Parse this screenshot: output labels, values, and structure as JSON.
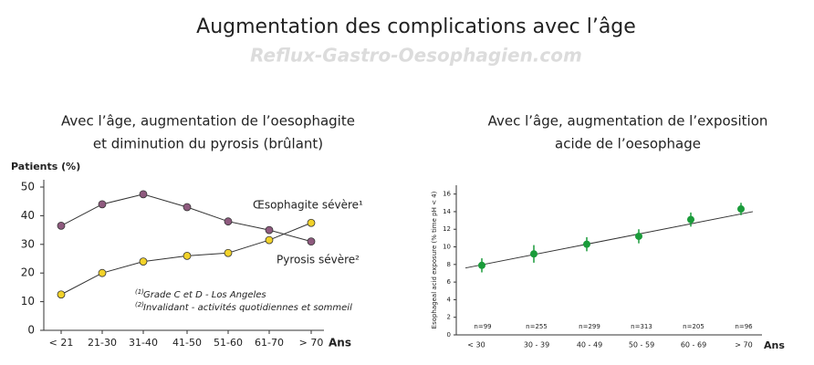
{
  "title": "Augmentation des complications avec l’âge",
  "watermark": "Reflux-Gastro-Oesophagien.com",
  "chart_data": [
    {
      "type": "line",
      "title": [
        "Avec l’âge, augmentation de l’oesophagite",
        "et diminution du pyrosis (brûlant)"
      ],
      "y_label": "Patients (%)",
      "x_label": "Ans",
      "categories": [
        "< 21",
        "21-30",
        "31-40",
        "41-50",
        "51-60",
        "61-70",
        "> 70"
      ],
      "series": [
        {
          "name": "Œsophagite sévère¹",
          "color": "#8e5a7e",
          "values": [
            36.5,
            44,
            47.5,
            43,
            38,
            35,
            31
          ]
        },
        {
          "name": "Pyrosis sévère²",
          "color": "#f2d22a",
          "values": [
            12.5,
            20,
            24,
            26,
            27,
            31.5,
            37.5
          ]
        }
      ],
      "ylim": [
        0,
        50
      ],
      "yticks": [
        0,
        10,
        20,
        30,
        40,
        50
      ],
      "annotations": [
        {
          "marker": "(1)",
          "text": "Grade C et D - Los Angeles"
        },
        {
          "marker": "(2)",
          "text": "Invalidant - activités quotidiennes et sommeil"
        }
      ]
    },
    {
      "type": "scatter",
      "title": [
        "Avec l’âge, augmentation de l’exposition",
        "acide de l’oesophage"
      ],
      "y_label": "Esophageal acid exposure (% time pH < 4)",
      "x_label": "Ans",
      "categories": [
        "< 30",
        "30 - 39",
        "40 - 49",
        "50 - 59",
        "60 - 69",
        "> 70"
      ],
      "counts": [
        "n=99",
        "n=255",
        "n=299",
        "n=313",
        "n=205",
        "n=96"
      ],
      "color": "#1a9b3a",
      "values": [
        7.9,
        9.2,
        10.3,
        11.2,
        13.1,
        14.3
      ],
      "errors": [
        0.8,
        1.0,
        0.8,
        0.8,
        0.8,
        0.7
      ],
      "trendline": [
        7.6,
        14.0
      ],
      "ylim": [
        0,
        17
      ],
      "yticks": [
        0,
        2,
        4,
        6,
        8,
        10,
        12,
        14,
        16
      ]
    }
  ]
}
